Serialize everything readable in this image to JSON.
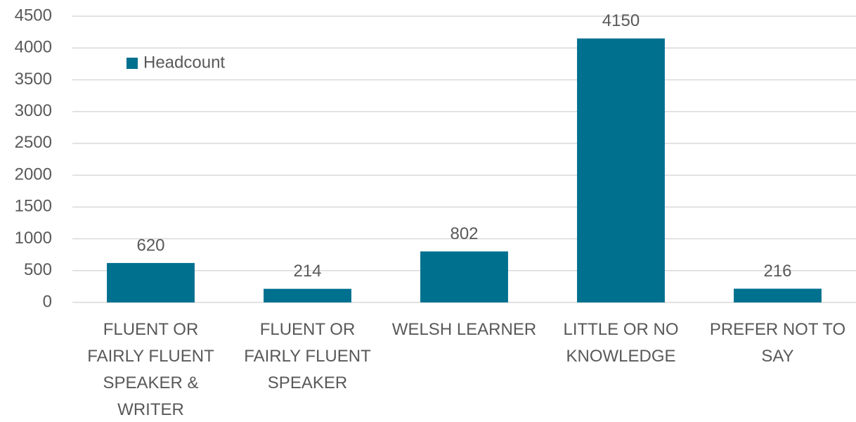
{
  "chart_data": {
    "type": "bar",
    "categories": [
      "FLUENT OR FAIRLY FLUENT SPEAKER & WRITER",
      "FLUENT OR FAIRLY FLUENT SPEAKER",
      "WELSH LEARNER",
      "LITTLE OR NO KNOWLEDGE",
      "PREFER NOT TO SAY"
    ],
    "series": [
      {
        "name": "Headcount",
        "color": "#00708f",
        "values": [
          620,
          214,
          802,
          4150,
          216
        ]
      }
    ],
    "ylim": [
      0,
      4500
    ],
    "yticks": [
      0,
      500,
      1000,
      1500,
      2000,
      2500,
      3000,
      3500,
      4000,
      4500
    ],
    "grid": true,
    "legend": "top-left"
  }
}
